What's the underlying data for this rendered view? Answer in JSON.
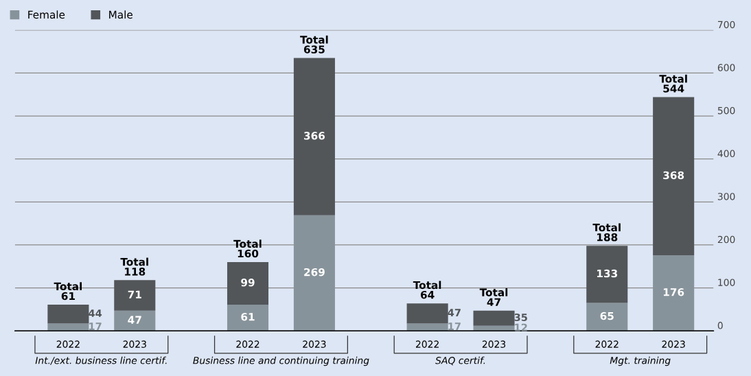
{
  "chart_data": {
    "type": "bar",
    "stacked": true,
    "categories": [
      "2022",
      "2023",
      "2022",
      "2023",
      "2022",
      "2023",
      "2022",
      "2023"
    ],
    "series": [
      {
        "name": "Female",
        "color": "#87939a",
        "values": [
          17,
          47,
          61,
          269,
          17,
          12,
          65,
          176
        ]
      },
      {
        "name": "Male",
        "color": "#525659",
        "values": [
          44,
          71,
          99,
          366,
          47,
          35,
          133,
          368
        ]
      }
    ],
    "data_labels": true,
    "totals": [
      "Total\n61",
      "Total\n118",
      "Total\n160",
      "Total\n635",
      "Total\n64",
      "Total\n47",
      "Total\n188",
      "Total\n544"
    ],
    "annotations": [
      "Int./ext. business line certif.",
      "Business line and continuing training",
      "SAQ certif.",
      "Mgt. training"
    ],
    "ylim": [
      0,
      700
    ],
    "yticks": [
      0,
      100,
      200,
      300,
      400,
      500,
      600,
      700
    ],
    "grid": "y",
    "legend": "top left"
  }
}
